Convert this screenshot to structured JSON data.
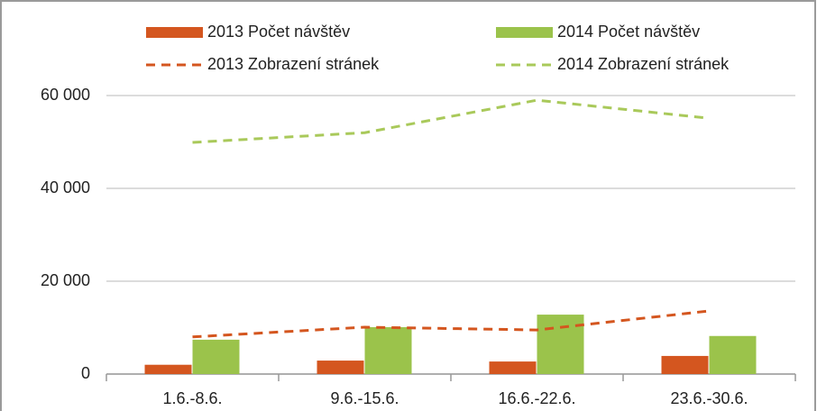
{
  "chart_data": {
    "type": "combo",
    "categories": [
      "1.6.-8.6.",
      "9.6.-15.6.",
      "16.6.-22.6.",
      "23.6.-30.6."
    ],
    "series": [
      {
        "name": "2013 Počet návštěv",
        "type": "bar",
        "color": "#d4561f",
        "values": [
          2000,
          2900,
          2700,
          3900
        ]
      },
      {
        "name": "2014 Počet návštěv",
        "type": "bar",
        "color": "#9bc34b",
        "values": [
          7400,
          10100,
          12800,
          8200
        ]
      },
      {
        "name": "2013 Zobrazení stránek",
        "type": "line",
        "color": "#d4561f",
        "values": [
          8000,
          10100,
          9500,
          13600
        ]
      },
      {
        "name": "2014 Zobrazení stránek",
        "type": "line",
        "color": "#a9c95a",
        "values": [
          49900,
          52000,
          59000,
          55100
        ]
      }
    ],
    "ylim": [
      0,
      60000
    ],
    "yticks": [
      0,
      {
        "value": 20000,
        "label": "20 000"
      },
      {
        "value": 40000,
        "label": "40 000"
      },
      {
        "value": 60000,
        "label": "60 000"
      }
    ],
    "grid": true,
    "legend": "top"
  }
}
